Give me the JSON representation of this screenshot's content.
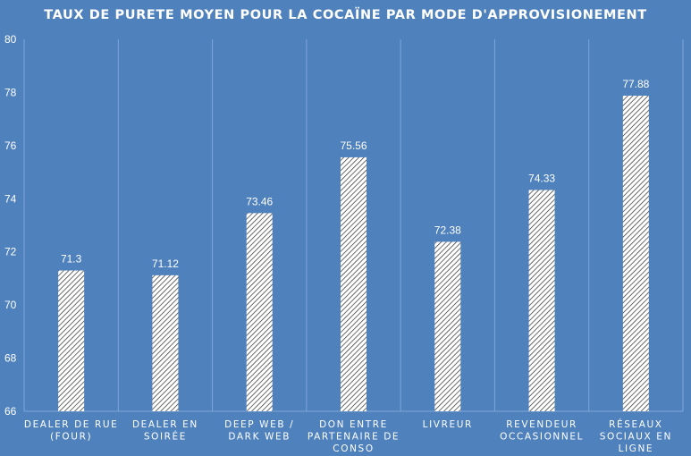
{
  "chart_data": {
    "type": "bar",
    "title": "TAUX DE PURETE MOYEN POUR LA COCAÏNE PAR MODE D'APPROVISIONEMENT",
    "xlabel": "",
    "ylabel": "",
    "ylim": [
      66,
      80
    ],
    "yticks": [
      "66",
      "68",
      "70",
      "72",
      "74",
      "76",
      "78",
      "80"
    ],
    "grid": "vertical category separators",
    "legend": "none",
    "categories": [
      [
        "DEALER DE RUE",
        "(FOUR)"
      ],
      [
        "DEALER EN",
        "SOIRÉE"
      ],
      [
        "DEEP WEB /",
        "DARK WEB"
      ],
      [
        "DON ENTRE",
        "PARTENAIRE DE",
        "CONSO"
      ],
      [
        "LIVREUR"
      ],
      [
        "REVENDEUR",
        "OCCASIONNEL"
      ],
      [
        "RÉSEAUX",
        "SOCIAUX EN",
        "LIGNE"
      ]
    ],
    "values": [
      71.3,
      71.12,
      73.46,
      75.56,
      72.38,
      74.33,
      77.88
    ],
    "data_labels": [
      "71.3",
      "71.12",
      "73.46",
      "75.56",
      "72.38",
      "74.33",
      "77.88"
    ],
    "colors": {
      "background": "#4f81bd",
      "bar_fill": "#ffffff",
      "bar_hatch": "#2b2b2b",
      "gridline": "#7fa6d9",
      "text": "#ffffff"
    }
  }
}
